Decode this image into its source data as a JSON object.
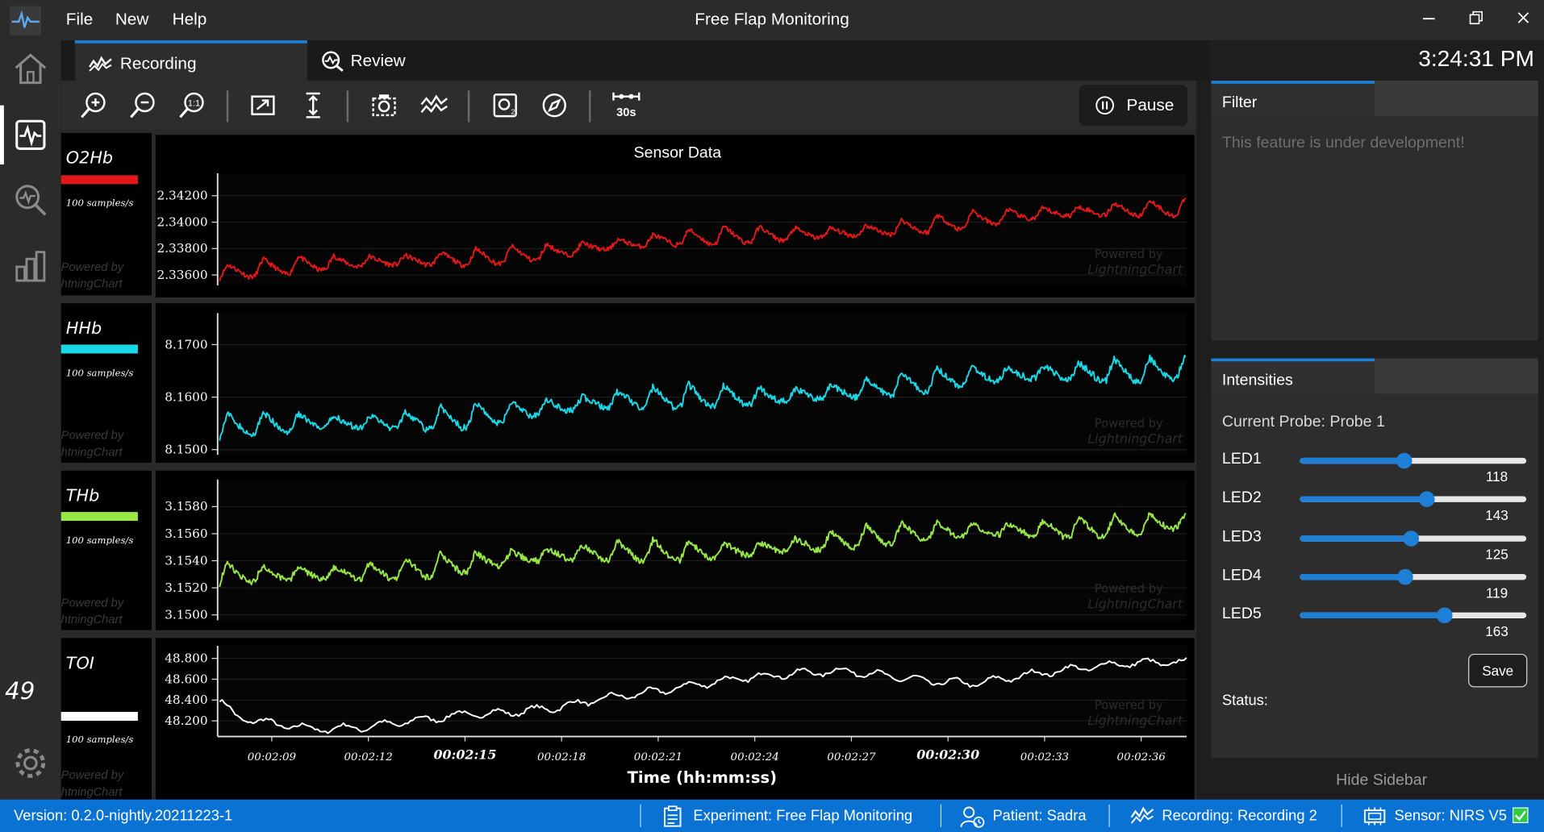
{
  "app": {
    "title": "Free Flap Monitoring",
    "menu": [
      "File",
      "New",
      "Help"
    ],
    "clock": "3:24:31 PM"
  },
  "tabs": [
    {
      "label": "Recording",
      "active": true
    },
    {
      "label": "Review",
      "active": false
    }
  ],
  "toolbar": {
    "window_label": "30s",
    "pause_label": "Pause"
  },
  "chart_data": [
    {
      "type": "line",
      "title": "Sensor Data",
      "series": [
        {
          "name": "O2Hb",
          "color": "#e01818"
        }
      ],
      "side_label": "O2Hb",
      "rate_label": "100 samples/s",
      "yticks": [
        "2.34200",
        "2.34000",
        "2.33800",
        "2.33600"
      ],
      "ylim": [
        2.3352,
        2.3437
      ],
      "trend": [
        2.3361,
        2.3412
      ],
      "amplitude": 0.0013,
      "period_s": 1.1
    },
    {
      "type": "line",
      "title": "",
      "series": [
        {
          "name": "HHb",
          "color": "#18d8e6"
        }
      ],
      "side_label": "HHb",
      "rate_label": "100 samples/s",
      "yticks": [
        "8.1700",
        "8.1600",
        "8.1500"
      ],
      "ylim": [
        8.149,
        8.176
      ],
      "trend": [
        8.1535,
        8.166
      ],
      "amplitude": 0.0045,
      "period_s": 1.1
    },
    {
      "type": "line",
      "title": "",
      "series": [
        {
          "name": "THb",
          "color": "#96e646"
        }
      ],
      "side_label": "THb",
      "rate_label": "100 samples/s",
      "yticks": [
        "3.1580",
        "3.1560",
        "3.1540",
        "3.1520",
        "3.1500"
      ],
      "ylim": [
        3.1496,
        3.16
      ],
      "trend": [
        3.1527,
        3.157
      ],
      "amplitude": 0.0016,
      "period_s": 1.1
    },
    {
      "type": "line",
      "title": "",
      "series": [
        {
          "name": "TOI",
          "color": "#ffffff"
        }
      ],
      "side_label": "TOI",
      "side_value": "49",
      "rate_label": "100 samples/s",
      "yticks": [
        "48.800",
        "48.600",
        "48.400",
        "48.200"
      ],
      "ylim": [
        48.05,
        48.92
      ],
      "points": [
        [
          0,
          48.4
        ],
        [
          0.5,
          48.24
        ],
        [
          1.5,
          48.18
        ],
        [
          3,
          48.12
        ],
        [
          4.5,
          48.14
        ],
        [
          6,
          48.2
        ],
        [
          7.5,
          48.26
        ],
        [
          9,
          48.28
        ],
        [
          10.5,
          48.33
        ],
        [
          12,
          48.42
        ],
        [
          13.5,
          48.48
        ],
        [
          15,
          48.56
        ],
        [
          16.5,
          48.62
        ],
        [
          18,
          48.66
        ],
        [
          19.5,
          48.68
        ],
        [
          21,
          48.62
        ],
        [
          22,
          48.58
        ],
        [
          23.5,
          48.56
        ],
        [
          25,
          48.64
        ],
        [
          26.5,
          48.7
        ],
        [
          28,
          48.75
        ],
        [
          29,
          48.76
        ],
        [
          30,
          48.76
        ]
      ],
      "xlabel": "Time (hh:mm:ss)",
      "xticks": [
        "00:02:09",
        "00:02:12",
        "00:02:15",
        "00:02:18",
        "00:02:21",
        "00:02:24",
        "00:02:27",
        "00:02:30",
        "00:02:33",
        "00:02:36"
      ]
    }
  ],
  "watermark": {
    "line1": "Powered by",
    "line2": "LightningChart",
    "left_fragment": "htningChart"
  },
  "filter": {
    "title": "Filter",
    "message": "This feature is under development!"
  },
  "intensities": {
    "title": "Intensities",
    "probe": "Current Probe: Probe 1",
    "max": 255,
    "leds": [
      {
        "label": "LED1",
        "value": 118
      },
      {
        "label": "LED2",
        "value": 143
      },
      {
        "label": "LED3",
        "value": 125
      },
      {
        "label": "LED4",
        "value": 119
      },
      {
        "label": "LED5",
        "value": 163
      }
    ],
    "save_label": "Save",
    "status_label": "Status:"
  },
  "sidebar": {
    "hide_label": "Hide Sidebar"
  },
  "statusbar": {
    "version": "Version: 0.2.0-nightly.20211223-1",
    "experiment": "Experiment: Free Flap Monitoring",
    "patient": "Patient: Sadra",
    "recording": "Recording: Recording 2",
    "sensor": "Sensor: NIRS V5"
  },
  "colors": {
    "accent": "#1e7fd6",
    "statusbar": "#0a72d3",
    "sensor_ok": "#2ecc40"
  }
}
